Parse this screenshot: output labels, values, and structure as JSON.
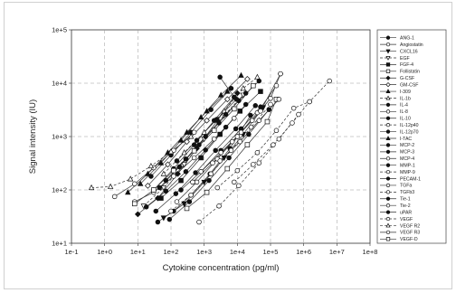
{
  "chart_data": {
    "type": "scatter",
    "xlabel": "Cytokine concentration (pg/ml)",
    "ylabel": "Signal intensity (IU)",
    "xscale": "log",
    "yscale": "log",
    "xlim": [
      0.1,
      100000000
    ],
    "ylim": [
      10,
      100000
    ],
    "x_ticks": [
      "1e-1",
      "1e+0",
      "1e+1",
      "1e+2",
      "1e+3",
      "1e+4",
      "1e+5",
      "1e+6",
      "1e+7",
      "1e+8"
    ],
    "y_ticks": [
      "1e+1",
      "1e+2",
      "1e+3",
      "1e+4",
      "1e+5"
    ],
    "grid": true,
    "legend_position": "right",
    "series": [
      {
        "name": "ANG-1",
        "marker": "circle-filled",
        "line": "solid",
        "points": [
          [
            40,
            25
          ],
          [
            120,
            40
          ],
          [
            400,
            80
          ],
          [
            1500,
            200
          ],
          [
            6000,
            600
          ],
          [
            25000,
            2500
          ]
        ]
      },
      {
        "name": "Angiostatin",
        "marker": "circle-open",
        "line": "solid",
        "points": [
          [
            8,
            60
          ],
          [
            30,
            90
          ],
          [
            120,
            180
          ],
          [
            500,
            400
          ],
          [
            2000,
            900
          ],
          [
            8000,
            2200
          ]
        ]
      },
      {
        "name": "CXCL16",
        "marker": "triangle-down-filled",
        "line": "solid",
        "points": [
          [
            60,
            30
          ],
          [
            250,
            55
          ],
          [
            1000,
            140
          ],
          [
            4000,
            400
          ],
          [
            15000,
            1100
          ],
          [
            60000,
            3500
          ]
        ]
      },
      {
        "name": "EGF",
        "marker": "triangle-down-open",
        "line": "dashed",
        "points": [
          [
            15,
            50
          ],
          [
            60,
            110
          ],
          [
            250,
            300
          ],
          [
            1000,
            900
          ],
          [
            4000,
            2500
          ],
          [
            15000,
            6000
          ]
        ]
      },
      {
        "name": "FGF-4",
        "marker": "square-filled",
        "line": "solid",
        "points": [
          [
            50,
            70
          ],
          [
            200,
            150
          ],
          [
            800,
            400
          ],
          [
            3000,
            1100
          ],
          [
            12000,
            3000
          ],
          [
            50000,
            7000
          ]
        ]
      },
      {
        "name": "Follistatin",
        "marker": "square-open",
        "line": "solid",
        "points": [
          [
            300,
            45
          ],
          [
            1200,
            90
          ],
          [
            5000,
            250
          ],
          [
            20000,
            700
          ],
          [
            80000,
            1900
          ],
          [
            150000,
            5000
          ]
        ]
      },
      {
        "name": "G-CSF",
        "marker": "diamond-filled",
        "line": "solid",
        "points": [
          [
            10,
            35
          ],
          [
            40,
            70
          ],
          [
            160,
            200
          ],
          [
            600,
            600
          ],
          [
            2500,
            2000
          ],
          [
            10000,
            6500
          ]
        ]
      },
      {
        "name": "GM-CSF",
        "marker": "diamond-open",
        "line": "solid",
        "points": [
          [
            20,
            120
          ],
          [
            80,
            300
          ],
          [
            300,
            800
          ],
          [
            1200,
            2000
          ],
          [
            5000,
            5000
          ],
          [
            20000,
            12000
          ]
        ]
      },
      {
        "name": "I-309",
        "marker": "triangle-up-filled",
        "line": "solid",
        "points": [
          [
            5,
            90
          ],
          [
            20,
            200
          ],
          [
            80,
            500
          ],
          [
            300,
            1200
          ],
          [
            1200,
            3000
          ],
          [
            5000,
            7000
          ]
        ]
      },
      {
        "name": "IL-1b",
        "marker": "triangle-up-open",
        "line": "dashed",
        "points": [
          [
            60,
            200
          ],
          [
            250,
            500
          ],
          [
            1000,
            1200
          ],
          [
            4000,
            3000
          ],
          [
            15000,
            8000
          ],
          [
            40000,
            13000
          ]
        ]
      },
      {
        "name": "IL-4",
        "marker": "circle-filled",
        "line": "solid",
        "points": [
          [
            30,
            100
          ],
          [
            120,
            250
          ],
          [
            500,
            700
          ],
          [
            2000,
            2000
          ],
          [
            8000,
            5500
          ],
          [
            3000,
            13000
          ]
        ]
      },
      {
        "name": "IL-8",
        "marker": "circle-open",
        "line": "solid",
        "points": [
          [
            150,
            60
          ],
          [
            600,
            140
          ],
          [
            2500,
            380
          ],
          [
            10000,
            1000
          ],
          [
            40000,
            2800
          ],
          [
            150000,
            9000
          ]
        ]
      },
      {
        "name": "IL-10",
        "marker": "circle-filled",
        "line": "solid",
        "points": [
          [
            70,
            150
          ],
          [
            280,
            380
          ],
          [
            1100,
            1000
          ],
          [
            4500,
            2600
          ],
          [
            18000,
            6500
          ]
        ]
      },
      {
        "name": "IL-12p40",
        "marker": "circle-open",
        "line": "dashed",
        "points": [
          [
            100,
            40
          ],
          [
            400,
            80
          ],
          [
            1600,
            200
          ],
          [
            6500,
            550
          ],
          [
            26000,
            1500
          ],
          [
            100000,
            4000
          ]
        ]
      },
      {
        "name": "IL-12p70",
        "marker": "circle-filled",
        "line": "solid",
        "points": [
          [
            25,
            180
          ],
          [
            100,
            450
          ],
          [
            400,
            1200
          ],
          [
            1600,
            3200
          ],
          [
            6500,
            8000
          ]
        ]
      },
      {
        "name": "I-TAC",
        "marker": "triangle-up-filled",
        "line": "solid",
        "points": [
          [
            12,
            130
          ],
          [
            50,
            320
          ],
          [
            200,
            850
          ],
          [
            800,
            2300
          ],
          [
            3200,
            6000
          ],
          [
            13000,
            14000
          ]
        ]
      },
      {
        "name": "MCP-2",
        "marker": "circle-filled",
        "line": "solid",
        "points": [
          [
            200,
            100
          ],
          [
            800,
            220
          ],
          [
            3200,
            550
          ],
          [
            13000,
            1400
          ],
          [
            50000,
            3600
          ]
        ]
      },
      {
        "name": "MCP-3",
        "marker": "circle-filled",
        "line": "solid",
        "points": [
          [
            35,
            40
          ],
          [
            140,
            85
          ],
          [
            550,
            210
          ],
          [
            2200,
            550
          ],
          [
            9000,
            1400
          ],
          [
            35000,
            3800
          ]
        ]
      },
      {
        "name": "MCP-4",
        "marker": "circle-open",
        "line": "solid",
        "points": [
          [
            450,
            140
          ],
          [
            1800,
            320
          ],
          [
            7000,
            800
          ],
          [
            28000,
            2000
          ],
          [
            100000,
            5200
          ],
          [
            200000,
            15000
          ]
        ]
      },
      {
        "name": "MMP-1",
        "marker": "circle-filled",
        "line": "solid",
        "points": [
          [
            90,
            28
          ],
          [
            360,
            60
          ],
          [
            1400,
            150
          ],
          [
            5600,
            400
          ],
          [
            22000,
            1100
          ],
          [
            90000,
            3200
          ]
        ]
      },
      {
        "name": "MMP-9",
        "marker": "circle-open",
        "line": "dashed",
        "points": [
          [
            700,
            25
          ],
          [
            2800,
            50
          ],
          [
            11000,
            120
          ],
          [
            45000,
            320
          ],
          [
            180000,
            900
          ],
          [
            700000,
            2600
          ]
        ]
      },
      {
        "name": "PECAM-1",
        "marker": "circle-filled",
        "line": "solid",
        "points": [
          [
            45,
            110
          ],
          [
            180,
            270
          ],
          [
            700,
            700
          ],
          [
            2800,
            1800
          ],
          [
            11000,
            4700
          ],
          [
            45000,
            11000
          ]
        ]
      },
      {
        "name": "TGFa",
        "marker": "circle-open",
        "line": "solid",
        "points": [
          [
            2,
            75
          ],
          [
            8,
            130
          ],
          [
            30,
            260
          ],
          [
            120,
            550
          ],
          [
            500,
            1200
          ]
        ]
      },
      {
        "name": "TGFb3",
        "marker": "circle-open",
        "line": "dashed",
        "points": [
          [
            2500,
            110
          ],
          [
            10000,
            230
          ],
          [
            40000,
            500
          ],
          [
            150000,
            1300
          ],
          [
            500000,
            3400
          ],
          [
            1500000,
            4500
          ]
        ]
      },
      {
        "name": "Tie-1",
        "marker": "circle-filled",
        "line": "solid",
        "points": [
          [
            150,
            350
          ],
          [
            600,
            850
          ],
          [
            2400,
            2100
          ],
          [
            9500,
            5000
          ]
        ]
      },
      {
        "name": "Tie-2",
        "marker": "circle-open",
        "line": "solid",
        "points": [
          [
            800,
            220
          ],
          [
            3200,
            500
          ],
          [
            13000,
            1200
          ],
          [
            50000,
            3000
          ],
          [
            200000,
            15000
          ]
        ]
      },
      {
        "name": "uPAR",
        "marker": "circle-filled",
        "line": "solid",
        "points": [
          [
            18,
            48
          ],
          [
            70,
            95
          ],
          [
            280,
            220
          ],
          [
            1100,
            560
          ],
          [
            4500,
            1500
          ],
          [
            18000,
            4000
          ]
        ]
      },
      {
        "name": "VEGF",
        "marker": "circle-open",
        "line": "dashed",
        "points": [
          [
            8000,
            140
          ],
          [
            30000,
            300
          ],
          [
            120000,
            700
          ],
          [
            450000,
            1800
          ],
          [
            1500000,
            4500
          ],
          [
            6000000,
            11000
          ]
        ]
      },
      {
        "name": "VEGF R2",
        "marker": "triangle-up-open",
        "line": "dashed",
        "points": [
          [
            0.4,
            110
          ],
          [
            1.5,
            115
          ],
          [
            6,
            160
          ],
          [
            25,
            280
          ],
          [
            100,
            520
          ],
          [
            400,
            1000
          ]
        ]
      },
      {
        "name": "VEGF R3",
        "marker": "circle-open",
        "line": "solid",
        "points": [
          [
            3000,
            350
          ],
          [
            12000,
            800
          ],
          [
            45000,
            2000
          ],
          [
            180000,
            5000
          ]
        ]
      },
      {
        "name": "VEGF-D",
        "marker": "square-open",
        "line": "solid",
        "points": [
          [
            8,
            55
          ],
          [
            30,
            100
          ],
          [
            120,
            230
          ],
          [
            500,
            540
          ],
          [
            2000,
            1300
          ],
          [
            8000,
            3300
          ],
          [
            30000,
            9000
          ]
        ]
      }
    ]
  }
}
